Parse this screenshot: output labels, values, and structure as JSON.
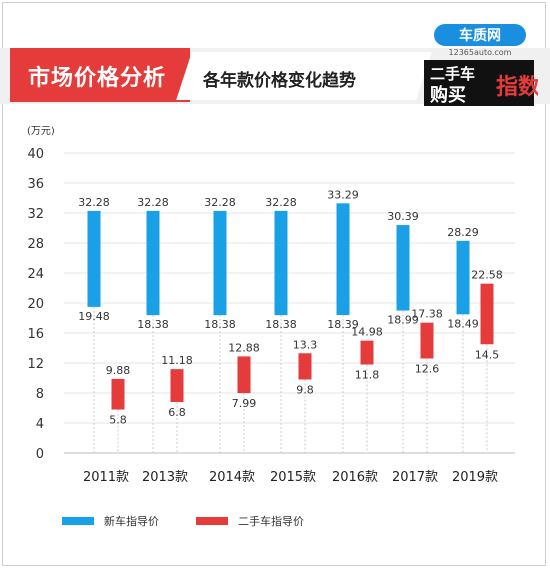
{
  "header": {
    "title": "市场价格分析",
    "subtitle": "各年款价格变化趋势",
    "logo": {
      "site_name": "车质网",
      "url": "12365auto.com",
      "line1": "二手车",
      "line2": "购买",
      "badge": "指数"
    }
  },
  "colors": {
    "new_car": "#1aa0e6",
    "used_car": "#e53b3b",
    "title_bg": "#e53b3b",
    "header_band": "#f0f0f0"
  },
  "chart_data": {
    "type": "bar",
    "ylabel": "(万元)",
    "ylim": [
      0,
      40
    ],
    "yticks": [
      0,
      4,
      8,
      12,
      16,
      20,
      24,
      28,
      32,
      36,
      40
    ],
    "grid": true,
    "legend_position": "bottom-left",
    "categories": [
      "2011款",
      "2013款",
      "2014款",
      "2015款",
      "2016款",
      "2017款",
      "2019款"
    ],
    "series": [
      {
        "name": "新车指导价",
        "color": "#1aa0e6",
        "ranges": [
          [
            19.48,
            32.28
          ],
          [
            18.38,
            32.28
          ],
          [
            18.38,
            32.28
          ],
          [
            18.38,
            32.28
          ],
          [
            18.39,
            33.29
          ],
          [
            18.99,
            30.39
          ],
          [
            18.49,
            28.29
          ]
        ],
        "high_labels": [
          "32.28",
          "32.28",
          "32.28",
          "32.28",
          "33.29",
          "30.39",
          "28.29"
        ],
        "low_labels": [
          "19.48",
          "18.38",
          "18.38",
          "18.38",
          "18.39",
          "18.99",
          "18.49"
        ]
      },
      {
        "name": "二手车指导价",
        "color": "#e53b3b",
        "ranges": [
          [
            5.8,
            9.88
          ],
          [
            6.8,
            11.18
          ],
          [
            7.99,
            12.88
          ],
          [
            9.8,
            13.3
          ],
          [
            11.8,
            14.98
          ],
          [
            12.6,
            17.38
          ],
          [
            14.5,
            22.58
          ]
        ],
        "high_labels": [
          "9.88",
          "11.18",
          "12.88",
          "13.3",
          "14.98",
          "17.38",
          "22.58"
        ],
        "low_labels": [
          "5.8",
          "6.8",
          "7.99",
          "9.8",
          "11.8",
          "12.6",
          "14.5"
        ]
      }
    ]
  }
}
